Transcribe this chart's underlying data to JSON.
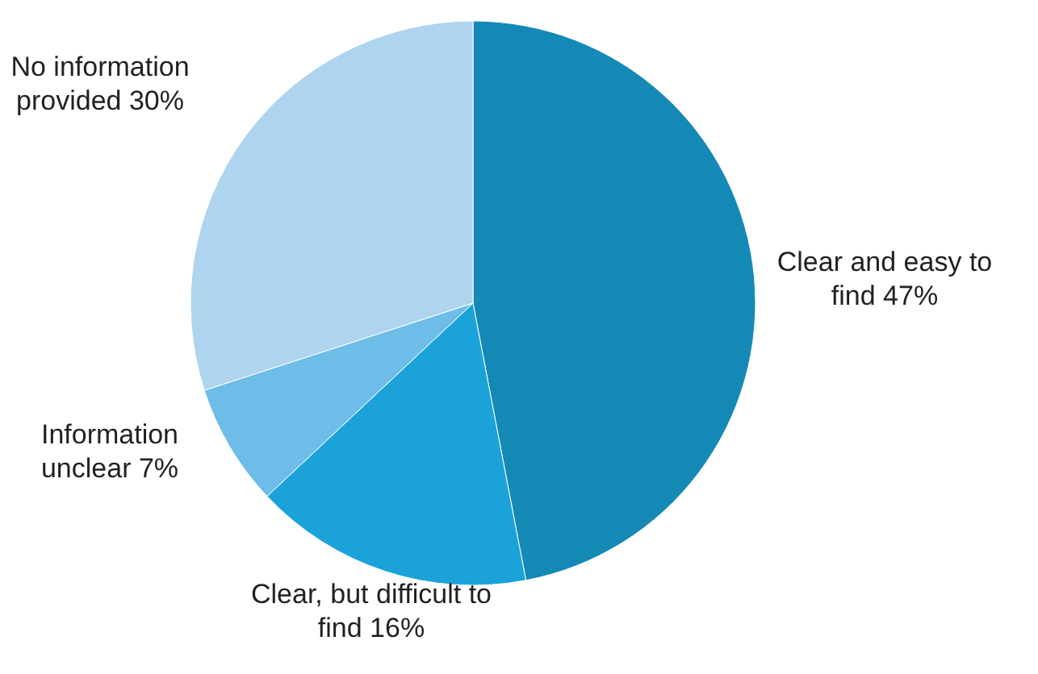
{
  "chart_data": {
    "type": "pie",
    "categories": [
      "Clear and easy to find",
      "Clear, but difficult to find",
      "Information unclear",
      "No information provided"
    ],
    "values": [
      47,
      16,
      7,
      30
    ],
    "value_labels": [
      "47%",
      "16%",
      "7%",
      "30%"
    ],
    "colors": [
      "#1589b5",
      "#1ba3d9",
      "#6dbde8",
      "#aed4ef"
    ]
  }
}
